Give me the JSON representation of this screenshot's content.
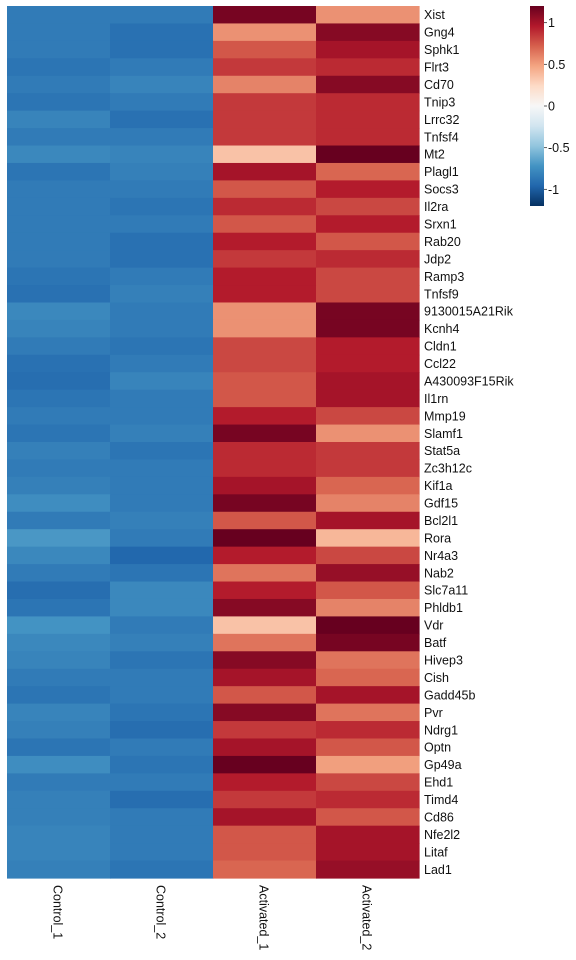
{
  "chart_data": {
    "type": "heatmap",
    "columns": [
      "Control_1",
      "Control_2",
      "Activated_1",
      "Activated_2"
    ],
    "rows": [
      "Xist",
      "Gng4",
      "Sphk1",
      "Flrt3",
      "Cd70",
      "Tnip3",
      "Lrrc32",
      "Tnfsf4",
      "Mt2",
      "Plagl1",
      "Socs3",
      "Il2ra",
      "Srxn1",
      "Rab20",
      "Jdp2",
      "Ramp3",
      "Tnfsf9",
      "9130015A21Rik",
      "Kcnh4",
      "Cldn1",
      "Ccl22",
      "A430093F15Rik",
      "Il1rn",
      "Mmp19",
      "Slamf1",
      "Stat5a",
      "Zc3h12c",
      "Kif1a",
      "Gdf15",
      "Bcl2l1",
      "Rora",
      "Nr4a3",
      "Nab2",
      "Slc7a11",
      "Phldb1",
      "Vdr",
      "Batf",
      "Hivep3",
      "Cish",
      "Gadd45b",
      "Pvr",
      "Ndrg1",
      "Optn",
      "Gp49a",
      "Ehd1",
      "Timd4",
      "Cd86",
      "Nfe2l2",
      "Litaf",
      "Lad1"
    ],
    "values": [
      [
        -0.85,
        -0.85,
        1.15,
        0.55
      ],
      [
        -0.85,
        -0.9,
        0.55,
        1.1
      ],
      [
        -0.85,
        -0.9,
        0.75,
        1.0
      ],
      [
        -0.88,
        -0.85,
        0.85,
        0.9
      ],
      [
        -0.85,
        -0.8,
        0.6,
        1.1
      ],
      [
        -0.88,
        -0.85,
        0.85,
        0.9
      ],
      [
        -0.8,
        -0.9,
        0.85,
        0.9
      ],
      [
        -0.85,
        -0.85,
        0.85,
        0.9
      ],
      [
        -0.78,
        -0.8,
        0.35,
        1.2
      ],
      [
        -0.88,
        -0.82,
        1.0,
        0.7
      ],
      [
        -0.85,
        -0.85,
        0.75,
        0.95
      ],
      [
        -0.85,
        -0.88,
        0.9,
        0.8
      ],
      [
        -0.85,
        -0.85,
        0.75,
        0.95
      ],
      [
        -0.85,
        -0.9,
        0.95,
        0.75
      ],
      [
        -0.85,
        -0.9,
        0.85,
        0.9
      ],
      [
        -0.88,
        -0.85,
        0.95,
        0.8
      ],
      [
        -0.9,
        -0.82,
        0.95,
        0.8
      ],
      [
        -0.78,
        -0.85,
        0.55,
        1.15
      ],
      [
        -0.8,
        -0.85,
        0.55,
        1.15
      ],
      [
        -0.85,
        -0.88,
        0.8,
        0.95
      ],
      [
        -0.9,
        -0.85,
        0.8,
        0.95
      ],
      [
        -0.92,
        -0.8,
        0.75,
        1.0
      ],
      [
        -0.88,
        -0.85,
        0.75,
        1.0
      ],
      [
        -0.85,
        -0.85,
        0.95,
        0.8
      ],
      [
        -0.88,
        -0.82,
        1.15,
        0.55
      ],
      [
        -0.82,
        -0.88,
        0.9,
        0.85
      ],
      [
        -0.85,
        -0.85,
        0.9,
        0.85
      ],
      [
        -0.82,
        -0.85,
        1.0,
        0.7
      ],
      [
        -0.75,
        -0.85,
        1.15,
        0.6
      ],
      [
        -0.85,
        -0.82,
        0.75,
        1.0
      ],
      [
        -0.7,
        -0.85,
        1.2,
        0.4
      ],
      [
        -0.78,
        -0.95,
        0.95,
        0.8
      ],
      [
        -0.85,
        -0.88,
        0.65,
        1.05
      ],
      [
        -0.92,
        -0.78,
        0.95,
        0.75
      ],
      [
        -0.88,
        -0.78,
        1.1,
        0.6
      ],
      [
        -0.72,
        -0.85,
        0.35,
        1.2
      ],
      [
        -0.78,
        -0.82,
        0.65,
        1.15
      ],
      [
        -0.8,
        -0.88,
        1.1,
        0.65
      ],
      [
        -0.85,
        -0.85,
        1.0,
        0.7
      ],
      [
        -0.88,
        -0.85,
        0.75,
        1.0
      ],
      [
        -0.8,
        -0.88,
        1.1,
        0.65
      ],
      [
        -0.82,
        -0.92,
        0.85,
        0.9
      ],
      [
        -0.88,
        -0.85,
        1.0,
        0.75
      ],
      [
        -0.75,
        -0.88,
        1.2,
        0.5
      ],
      [
        -0.85,
        -0.85,
        0.95,
        0.8
      ],
      [
        -0.82,
        -0.92,
        0.85,
        0.9
      ],
      [
        -0.82,
        -0.85,
        1.0,
        0.75
      ],
      [
        -0.8,
        -0.85,
        0.75,
        1.0
      ],
      [
        -0.8,
        -0.85,
        0.75,
        1.0
      ],
      [
        -0.82,
        -0.88,
        0.7,
        1.05
      ]
    ],
    "colorbar": {
      "ticks": [
        1,
        0.5,
        0,
        -0.5,
        -1
      ],
      "tick_labels": [
        "1",
        "0.5",
        "0",
        "-0.5",
        "-1"
      ],
      "range": [
        -1.2,
        1.2
      ],
      "colors": [
        "#053061",
        "#2166ac",
        "#4393c3",
        "#92c5de",
        "#d1e5f0",
        "#f7f7f7",
        "#fddbc7",
        "#f4a582",
        "#d6604d",
        "#b2182b",
        "#67001f"
      ]
    },
    "title": "",
    "xlabel": "",
    "ylabel": ""
  }
}
